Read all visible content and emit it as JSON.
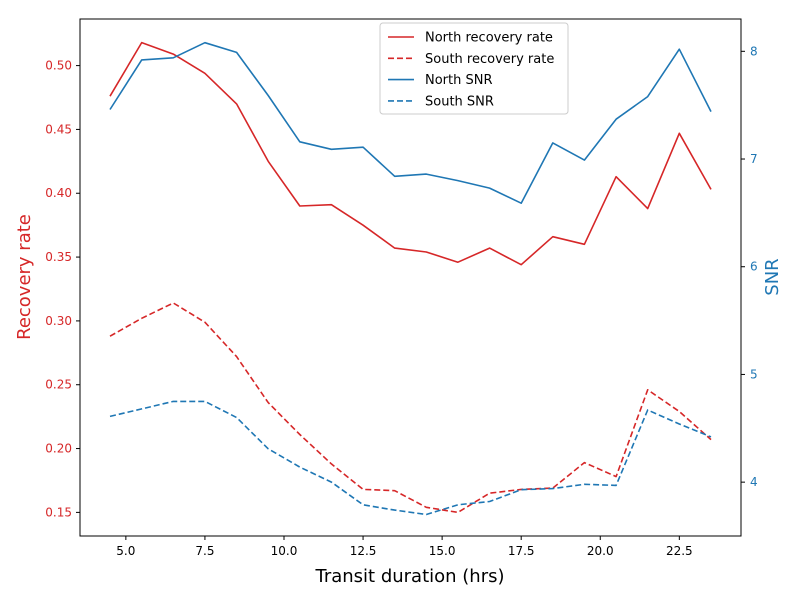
{
  "chart_data": {
    "type": "line",
    "xlabel": "Transit duration (hrs)",
    "ylabel_left": "Recovery rate",
    "ylabel_right": "SNR",
    "xlim": [
      3.55,
      24.45
    ],
    "ylim_left": [
      0.1315,
      0.5365
    ],
    "ylim_right": [
      3.5,
      8.3
    ],
    "xticks": [
      5.0,
      7.5,
      10.0,
      12.5,
      15.0,
      17.5,
      20.0,
      22.5
    ],
    "xtick_labels": [
      "5.0",
      "7.5",
      "10.0",
      "12.5",
      "15.0",
      "17.5",
      "20.0",
      "22.5"
    ],
    "yticks_left": [
      0.15,
      0.2,
      0.25,
      0.3,
      0.35,
      0.4,
      0.45,
      0.5
    ],
    "ytick_labels_left": [
      "0.15",
      "0.20",
      "0.25",
      "0.30",
      "0.35",
      "0.40",
      "0.45",
      "0.50"
    ],
    "yticks_right": [
      4,
      5,
      6,
      7,
      8
    ],
    "ytick_labels_right": [
      "4",
      "5",
      "6",
      "7",
      "8"
    ],
    "colors": {
      "recovery": "#d62728",
      "snr": "#1f77b4",
      "axis": "#000000"
    },
    "legend_position": "top-center",
    "x": [
      4.5,
      5.5,
      6.5,
      7.5,
      8.5,
      9.5,
      10.5,
      11.5,
      12.5,
      13.5,
      14.5,
      15.5,
      16.5,
      17.5,
      18.5,
      19.5,
      20.5,
      21.5,
      22.5,
      23.5
    ],
    "series": [
      {
        "name": "North recovery rate",
        "axis": "left",
        "color": "#d62728",
        "dashed": false,
        "values": [
          0.476,
          0.518,
          0.509,
          0.494,
          0.47,
          0.425,
          0.39,
          0.391,
          0.375,
          0.357,
          0.354,
          0.346,
          0.357,
          0.344,
          0.366,
          0.36,
          0.413,
          0.388,
          0.447,
          0.403
        ]
      },
      {
        "name": "South recovery rate",
        "axis": "left",
        "color": "#d62728",
        "dashed": true,
        "values": [
          0.288,
          0.302,
          0.314,
          0.299,
          0.272,
          0.236,
          0.211,
          0.188,
          0.168,
          0.167,
          0.154,
          0.15,
          0.165,
          0.168,
          0.169,
          0.189,
          0.178,
          0.246,
          0.229,
          0.207
        ]
      },
      {
        "name": "North SNR",
        "axis": "right",
        "color": "#1f77b4",
        "dashed": false,
        "values": [
          7.46,
          7.92,
          7.94,
          8.08,
          7.99,
          7.59,
          7.16,
          7.09,
          7.11,
          6.84,
          6.86,
          6.8,
          6.73,
          6.59,
          7.15,
          6.99,
          7.37,
          7.58,
          8.02,
          7.44
        ]
      },
      {
        "name": "South SNR",
        "axis": "right",
        "color": "#1f77b4",
        "dashed": true,
        "values": [
          4.61,
          4.68,
          4.75,
          4.75,
          4.6,
          4.31,
          4.14,
          4.0,
          3.79,
          3.74,
          3.7,
          3.79,
          3.82,
          3.93,
          3.94,
          3.98,
          3.97,
          4.67,
          4.54,
          4.42
        ]
      }
    ]
  }
}
